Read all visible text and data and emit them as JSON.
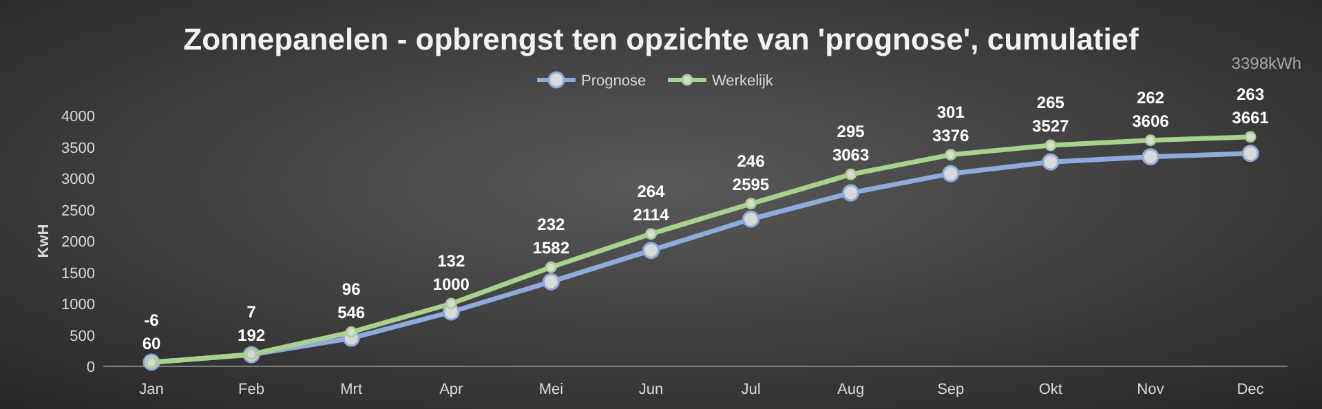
{
  "chart_data": {
    "type": "line",
    "title": "Zonnepanelen - opbrengst ten opzichte van 'prognose', cumulatief",
    "ylabel": "KwH",
    "categories": [
      "Jan",
      "Feb",
      "Mrt",
      "Apr",
      "Mei",
      "Jun",
      "Jul",
      "Aug",
      "Sep",
      "Okt",
      "Nov",
      "Dec"
    ],
    "series": [
      {
        "name": "Prognose",
        "color": "#8faadc",
        "values": [
          66,
          185,
          450,
          868,
          1350,
          1850,
          2349,
          2768,
          3075,
          3262,
          3344,
          3398
        ]
      },
      {
        "name": "Werkelijk",
        "color": "#a9d18e",
        "values": [
          60,
          192,
          546,
          1000,
          1582,
          2114,
          2595,
          3063,
          3376,
          3527,
          3606,
          3661
        ],
        "value_labels": [
          "60",
          "192",
          "546",
          "1000",
          "1582",
          "2114",
          "2595",
          "3063",
          "3376",
          "3527",
          "3606",
          "3661"
        ]
      }
    ],
    "annotations": [
      "3398kWh",
      {
        "text": "-6",
        "x": "Jan",
        "y": 60
      },
      {
        "text": "7",
        "x": "Feb",
        "y": 192
      },
      {
        "text": "96",
        "x": "Mrt",
        "y": 546
      },
      {
        "text": "132",
        "x": "Apr",
        "y": 1000
      },
      {
        "text": "232",
        "x": "Mei",
        "y": 1582
      },
      {
        "text": "264",
        "x": "Jun",
        "y": 2114
      },
      {
        "text": "246",
        "x": "Jul",
        "y": 2595
      },
      {
        "text": "295",
        "x": "Aug",
        "y": 3063
      },
      {
        "text": "301",
        "x": "Sep",
        "y": 3376
      },
      {
        "text": "265",
        "x": "Okt",
        "y": 3527
      },
      {
        "text": "262",
        "x": "Nov",
        "y": 3606
      },
      {
        "text": "263",
        "x": "Dec",
        "y": 3661
      }
    ],
    "ylim": [
      0,
      4000
    ],
    "yticks": [
      0,
      500,
      1000,
      1500,
      2000,
      2500,
      3000,
      3500,
      4000
    ],
    "grid": false,
    "legend": "top",
    "marker": "circle",
    "line_style": "solid"
  }
}
